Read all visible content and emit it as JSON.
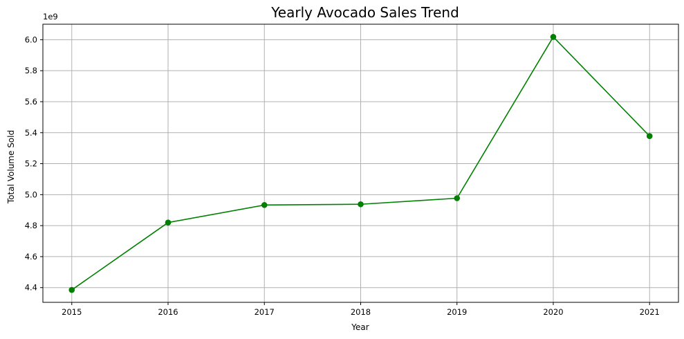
{
  "chart_data": {
    "type": "line",
    "title": "Yearly Avocado Sales Trend",
    "xlabel": "Year",
    "ylabel": "Total Volume Sold",
    "y_offset_label": "1e9",
    "y_scale": 1000000000,
    "x": [
      2015,
      2016,
      2017,
      2018,
      2019,
      2020,
      2021
    ],
    "series": [
      {
        "values": [
          4385000000,
          4820000000,
          4933000000,
          4938000000,
          4977000000,
          6018000000,
          5378000000
        ],
        "color": "#008000",
        "marker": "circle"
      }
    ],
    "xlim": [
      2014.7,
      2021.3
    ],
    "ylim": [
      4.305,
      6.1
    ],
    "x_ticks": [
      "2015",
      "2016",
      "2017",
      "2018",
      "2019",
      "2020",
      "2021"
    ],
    "y_ticks": [
      "4.4",
      "4.6",
      "4.8",
      "5.0",
      "5.2",
      "5.4",
      "5.6",
      "5.8",
      "6.0"
    ],
    "grid": true
  }
}
